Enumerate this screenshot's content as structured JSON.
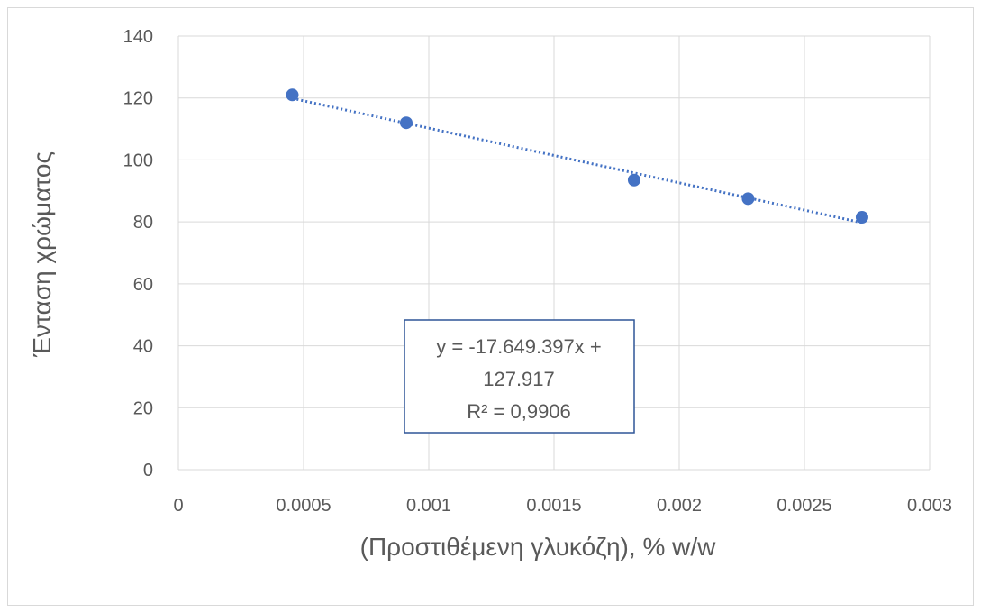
{
  "chart_data": {
    "type": "scatter",
    "title": "",
    "xlabel": "(Προστιθέμενη γλυκόζη), % w/w",
    "ylabel": "Ένταση χρώματος",
    "xlim": [
      0,
      0.003
    ],
    "ylim": [
      0,
      140
    ],
    "x_ticks": [
      0,
      0.0005,
      0.001,
      0.0015,
      0.002,
      0.0025,
      0.003
    ],
    "x_tick_labels": [
      "0",
      "0.0005",
      "0.001",
      "0.0015",
      "0.002",
      "0.0025",
      "0.003"
    ],
    "y_ticks": [
      0,
      20,
      40,
      60,
      80,
      100,
      120,
      140
    ],
    "y_tick_labels": [
      "0",
      "20",
      "40",
      "60",
      "80",
      "100",
      "120",
      "140"
    ],
    "grid": true,
    "series": [
      {
        "x": [
          0.000455,
          0.00091,
          0.00182,
          0.002275,
          0.00273
        ],
        "y": [
          121,
          112,
          93.5,
          87.5,
          81.5
        ],
        "color": "#4472c4"
      }
    ],
    "trendline": {
      "type": "linear",
      "slope": -17649.397,
      "intercept": 127.917,
      "style": "dotted",
      "color": "#4472c4",
      "equation_lines": [
        "y = -17.649.397x +",
        "127.917",
        "R² = 0,9906"
      ]
    }
  }
}
